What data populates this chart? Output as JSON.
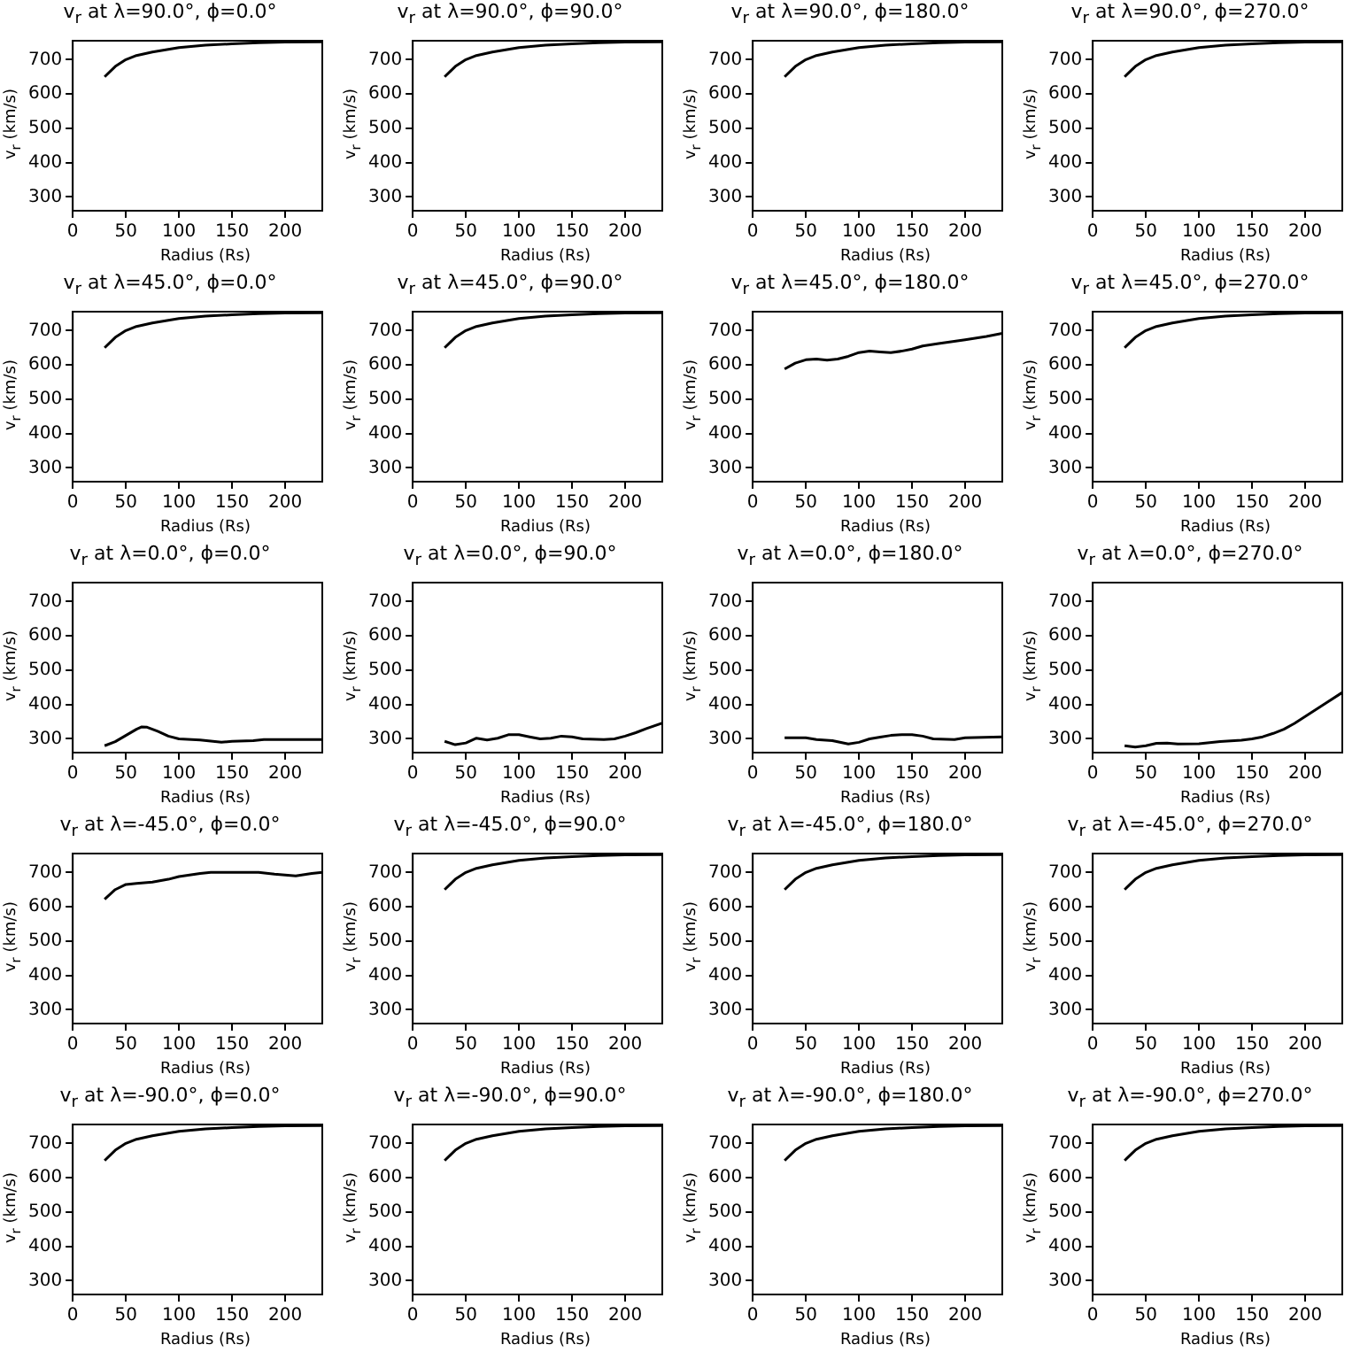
{
  "chart_data": [
    {
      "type": "line",
      "title": "v$_{r}$ at λ=90.0°, ϕ=0.0°",
      "xlabel": "Radius (Rs)",
      "ylabel": "v$_{r}$ (km/s)",
      "xlim": [
        0,
        235
      ],
      "ylim": [
        260,
        755
      ],
      "xticks": [
        0,
        50,
        100,
        150,
        200
      ],
      "yticks": [
        300,
        400,
        500,
        600,
        700
      ],
      "series": [
        {
          "color": "#000000",
          "x": [
            30,
            40,
            50,
            60,
            75,
            100,
            125,
            150,
            175,
            200,
            235
          ],
          "values": [
            650,
            680,
            700,
            712,
            722,
            735,
            742,
            746,
            749,
            751,
            752
          ]
        }
      ]
    },
    {
      "type": "line",
      "title": "v$_{r}$ at λ=90.0°, ϕ=90.0°",
      "xlabel": "Radius (Rs)",
      "ylabel": "v$_{r}$ (km/s)",
      "xlim": [
        0,
        235
      ],
      "ylim": [
        260,
        755
      ],
      "xticks": [
        0,
        50,
        100,
        150,
        200
      ],
      "yticks": [
        300,
        400,
        500,
        600,
        700
      ],
      "series": [
        {
          "color": "#000000",
          "x": [
            30,
            40,
            50,
            60,
            75,
            100,
            125,
            150,
            175,
            200,
            235
          ],
          "values": [
            650,
            680,
            700,
            712,
            722,
            735,
            742,
            746,
            749,
            751,
            752
          ]
        }
      ]
    },
    {
      "type": "line",
      "title": "v$_{r}$ at λ=90.0°, ϕ=180.0°",
      "xlabel": "Radius (Rs)",
      "ylabel": "v$_{r}$ (km/s)",
      "xlim": [
        0,
        235
      ],
      "ylim": [
        260,
        755
      ],
      "xticks": [
        0,
        50,
        100,
        150,
        200
      ],
      "yticks": [
        300,
        400,
        500,
        600,
        700
      ],
      "series": [
        {
          "color": "#000000",
          "x": [
            30,
            40,
            50,
            60,
            75,
            100,
            125,
            150,
            175,
            200,
            235
          ],
          "values": [
            650,
            680,
            700,
            712,
            722,
            735,
            742,
            746,
            749,
            751,
            752
          ]
        }
      ]
    },
    {
      "type": "line",
      "title": "v$_{r}$ at λ=90.0°, ϕ=270.0°",
      "xlabel": "Radius (Rs)",
      "ylabel": "v$_{r}$ (km/s)",
      "xlim": [
        0,
        235
      ],
      "ylim": [
        260,
        755
      ],
      "xticks": [
        0,
        50,
        100,
        150,
        200
      ],
      "yticks": [
        300,
        400,
        500,
        600,
        700
      ],
      "series": [
        {
          "color": "#000000",
          "x": [
            30,
            40,
            50,
            60,
            75,
            100,
            125,
            150,
            175,
            200,
            235
          ],
          "values": [
            650,
            680,
            700,
            712,
            722,
            735,
            742,
            746,
            749,
            751,
            752
          ]
        }
      ]
    },
    {
      "type": "line",
      "title": "v$_{r}$ at λ=45.0°, ϕ=0.0°",
      "xlabel": "Radius (Rs)",
      "ylabel": "v$_{r}$ (km/s)",
      "xlim": [
        0,
        235
      ],
      "ylim": [
        260,
        755
      ],
      "xticks": [
        0,
        50,
        100,
        150,
        200
      ],
      "yticks": [
        300,
        400,
        500,
        600,
        700
      ],
      "series": [
        {
          "color": "#000000",
          "x": [
            30,
            40,
            50,
            60,
            75,
            100,
            125,
            150,
            175,
            200,
            235
          ],
          "values": [
            650,
            680,
            700,
            712,
            722,
            735,
            742,
            746,
            749,
            751,
            752
          ]
        }
      ]
    },
    {
      "type": "line",
      "title": "v$_{r}$ at λ=45.0°, ϕ=90.0°",
      "xlabel": "Radius (Rs)",
      "ylabel": "v$_{r}$ (km/s)",
      "xlim": [
        0,
        235
      ],
      "ylim": [
        260,
        755
      ],
      "xticks": [
        0,
        50,
        100,
        150,
        200
      ],
      "yticks": [
        300,
        400,
        500,
        600,
        700
      ],
      "series": [
        {
          "color": "#000000",
          "x": [
            30,
            40,
            50,
            60,
            75,
            100,
            125,
            150,
            175,
            200,
            235
          ],
          "values": [
            650,
            680,
            700,
            712,
            722,
            735,
            742,
            746,
            749,
            751,
            752
          ]
        }
      ]
    },
    {
      "type": "line",
      "title": "v$_{r}$ at λ=45.0°, ϕ=180.0°",
      "xlabel": "Radius (Rs)",
      "ylabel": "v$_{r}$ (km/s)",
      "xlim": [
        0,
        235
      ],
      "ylim": [
        260,
        755
      ],
      "xticks": [
        0,
        50,
        100,
        150,
        200
      ],
      "yticks": [
        300,
        400,
        500,
        600,
        700
      ],
      "series": [
        {
          "color": "#000000",
          "x": [
            30,
            40,
            50,
            60,
            70,
            80,
            90,
            100,
            110,
            120,
            130,
            140,
            150,
            160,
            175,
            200,
            220,
            235
          ],
          "values": [
            588,
            605,
            615,
            617,
            614,
            617,
            625,
            636,
            640,
            638,
            636,
            640,
            646,
            655,
            662,
            673,
            683,
            692
          ]
        }
      ]
    },
    {
      "type": "line",
      "title": "v$_{r}$ at λ=45.0°, ϕ=270.0°",
      "xlabel": "Radius (Rs)",
      "ylabel": "v$_{r}$ (km/s)",
      "xlim": [
        0,
        235
      ],
      "ylim": [
        260,
        755
      ],
      "xticks": [
        0,
        50,
        100,
        150,
        200
      ],
      "yticks": [
        300,
        400,
        500,
        600,
        700
      ],
      "series": [
        {
          "color": "#000000",
          "x": [
            30,
            40,
            50,
            60,
            75,
            100,
            125,
            150,
            175,
            200,
            235
          ],
          "values": [
            650,
            680,
            700,
            712,
            722,
            735,
            742,
            746,
            749,
            751,
            752
          ]
        }
      ]
    },
    {
      "type": "line",
      "title": "v$_{r}$ at λ=0.0°, ϕ=0.0°",
      "xlabel": "Radius (Rs)",
      "ylabel": "v$_{r}$ (km/s)",
      "xlim": [
        0,
        235
      ],
      "ylim": [
        260,
        755
      ],
      "xticks": [
        0,
        50,
        100,
        150,
        200
      ],
      "yticks": [
        300,
        400,
        500,
        600,
        700
      ],
      "series": [
        {
          "color": "#000000",
          "x": [
            30,
            40,
            50,
            60,
            65,
            70,
            80,
            90,
            100,
            120,
            140,
            150,
            170,
            180,
            235
          ],
          "values": [
            280,
            292,
            310,
            328,
            335,
            334,
            322,
            308,
            300,
            297,
            290,
            293,
            295,
            298,
            298
          ]
        }
      ]
    },
    {
      "type": "line",
      "title": "v$_{r}$ at λ=0.0°, ϕ=90.0°",
      "xlabel": "Radius (Rs)",
      "ylabel": "v$_{r}$ (km/s)",
      "xlim": [
        0,
        235
      ],
      "ylim": [
        260,
        755
      ],
      "xticks": [
        0,
        50,
        100,
        150,
        200
      ],
      "yticks": [
        300,
        400,
        500,
        600,
        700
      ],
      "series": [
        {
          "color": "#000000",
          "x": [
            30,
            40,
            50,
            60,
            70,
            80,
            90,
            100,
            110,
            120,
            130,
            140,
            150,
            160,
            180,
            190,
            200,
            210,
            220,
            235
          ],
          "values": [
            293,
            283,
            288,
            302,
            297,
            302,
            312,
            312,
            306,
            300,
            302,
            308,
            306,
            300,
            298,
            300,
            308,
            318,
            330,
            346
          ]
        }
      ]
    },
    {
      "type": "line",
      "title": "v$_{r}$ at λ=0.0°, ϕ=180.0°",
      "xlabel": "Radius (Rs)",
      "ylabel": "v$_{r}$ (km/s)",
      "xlim": [
        0,
        235
      ],
      "ylim": [
        260,
        755
      ],
      "xticks": [
        0,
        50,
        100,
        150,
        200
      ],
      "yticks": [
        300,
        400,
        500,
        600,
        700
      ],
      "series": [
        {
          "color": "#000000",
          "x": [
            30,
            50,
            60,
            75,
            90,
            100,
            110,
            120,
            130,
            140,
            150,
            160,
            170,
            190,
            200,
            235
          ],
          "values": [
            303,
            303,
            298,
            295,
            285,
            290,
            300,
            305,
            310,
            312,
            312,
            308,
            300,
            298,
            303,
            306
          ]
        }
      ]
    },
    {
      "type": "line",
      "title": "v$_{r}$ at λ=0.0°, ϕ=270.0°",
      "xlabel": "Radius (Rs)",
      "ylabel": "v$_{r}$ (km/s)",
      "xlim": [
        0,
        235
      ],
      "ylim": [
        260,
        755
      ],
      "xticks": [
        0,
        50,
        100,
        150,
        200
      ],
      "yticks": [
        300,
        400,
        500,
        600,
        700
      ],
      "series": [
        {
          "color": "#000000",
          "x": [
            30,
            40,
            50,
            60,
            70,
            80,
            100,
            120,
            140,
            150,
            160,
            170,
            180,
            190,
            200,
            210,
            220,
            235
          ],
          "values": [
            280,
            276,
            280,
            287,
            288,
            285,
            286,
            292,
            296,
            300,
            306,
            316,
            328,
            345,
            365,
            385,
            405,
            435
          ]
        }
      ]
    },
    {
      "type": "line",
      "title": "v$_{r}$ at λ=-45.0°, ϕ=0.0°",
      "xlabel": "Radius (Rs)",
      "ylabel": "v$_{r}$ (km/s)",
      "xlim": [
        0,
        235
      ],
      "ylim": [
        260,
        755
      ],
      "xticks": [
        0,
        50,
        100,
        150,
        200
      ],
      "yticks": [
        300,
        400,
        500,
        600,
        700
      ],
      "series": [
        {
          "color": "#000000",
          "x": [
            30,
            40,
            50,
            60,
            75,
            90,
            100,
            120,
            130,
            175,
            190,
            210,
            225,
            235
          ],
          "values": [
            622,
            650,
            665,
            668,
            672,
            680,
            688,
            697,
            700,
            700,
            695,
            690,
            697,
            700
          ]
        }
      ]
    },
    {
      "type": "line",
      "title": "v$_{r}$ at λ=-45.0°, ϕ=90.0°",
      "xlabel": "Radius (Rs)",
      "ylabel": "v$_{r}$ (km/s)",
      "xlim": [
        0,
        235
      ],
      "ylim": [
        260,
        755
      ],
      "xticks": [
        0,
        50,
        100,
        150,
        200
      ],
      "yticks": [
        300,
        400,
        500,
        600,
        700
      ],
      "series": [
        {
          "color": "#000000",
          "x": [
            30,
            40,
            50,
            60,
            75,
            100,
            125,
            150,
            175,
            200,
            235
          ],
          "values": [
            650,
            680,
            700,
            712,
            722,
            735,
            742,
            746,
            749,
            751,
            752
          ]
        }
      ]
    },
    {
      "type": "line",
      "title": "v$_{r}$ at λ=-45.0°, ϕ=180.0°",
      "xlabel": "Radius (Rs)",
      "ylabel": "v$_{r}$ (km/s)",
      "xlim": [
        0,
        235
      ],
      "ylim": [
        260,
        755
      ],
      "xticks": [
        0,
        50,
        100,
        150,
        200
      ],
      "yticks": [
        300,
        400,
        500,
        600,
        700
      ],
      "series": [
        {
          "color": "#000000",
          "x": [
            30,
            40,
            50,
            60,
            75,
            100,
            125,
            150,
            175,
            200,
            235
          ],
          "values": [
            650,
            680,
            700,
            712,
            722,
            735,
            742,
            746,
            749,
            751,
            752
          ]
        }
      ]
    },
    {
      "type": "line",
      "title": "v$_{r}$ at λ=-45.0°, ϕ=270.0°",
      "xlabel": "Radius (Rs)",
      "ylabel": "v$_{r}$ (km/s)",
      "xlim": [
        0,
        235
      ],
      "ylim": [
        260,
        755
      ],
      "xticks": [
        0,
        50,
        100,
        150,
        200
      ],
      "yticks": [
        300,
        400,
        500,
        600,
        700
      ],
      "series": [
        {
          "color": "#000000",
          "x": [
            30,
            40,
            50,
            60,
            75,
            100,
            125,
            150,
            175,
            200,
            235
          ],
          "values": [
            650,
            680,
            700,
            712,
            722,
            735,
            742,
            746,
            749,
            751,
            752
          ]
        }
      ]
    },
    {
      "type": "line",
      "title": "v$_{r}$ at λ=-90.0°, ϕ=0.0°",
      "xlabel": "Radius (Rs)",
      "ylabel": "v$_{r}$ (km/s)",
      "xlim": [
        0,
        235
      ],
      "ylim": [
        260,
        755
      ],
      "xticks": [
        0,
        50,
        100,
        150,
        200
      ],
      "yticks": [
        300,
        400,
        500,
        600,
        700
      ],
      "series": [
        {
          "color": "#000000",
          "x": [
            30,
            40,
            50,
            60,
            75,
            100,
            125,
            150,
            175,
            200,
            235
          ],
          "values": [
            650,
            680,
            700,
            712,
            722,
            735,
            742,
            746,
            749,
            751,
            752
          ]
        }
      ]
    },
    {
      "type": "line",
      "title": "v$_{r}$ at λ=-90.0°, ϕ=90.0°",
      "xlabel": "Radius (Rs)",
      "ylabel": "v$_{r}$ (km/s)",
      "xlim": [
        0,
        235
      ],
      "ylim": [
        260,
        755
      ],
      "xticks": [
        0,
        50,
        100,
        150,
        200
      ],
      "yticks": [
        300,
        400,
        500,
        600,
        700
      ],
      "series": [
        {
          "color": "#000000",
          "x": [
            30,
            40,
            50,
            60,
            75,
            100,
            125,
            150,
            175,
            200,
            235
          ],
          "values": [
            650,
            680,
            700,
            712,
            722,
            735,
            742,
            746,
            749,
            751,
            752
          ]
        }
      ]
    },
    {
      "type": "line",
      "title": "v$_{r}$ at λ=-90.0°, ϕ=180.0°",
      "xlabel": "Radius (Rs)",
      "ylabel": "v$_{r}$ (km/s)",
      "xlim": [
        0,
        235
      ],
      "ylim": [
        260,
        755
      ],
      "xticks": [
        0,
        50,
        100,
        150,
        200
      ],
      "yticks": [
        300,
        400,
        500,
        600,
        700
      ],
      "series": [
        {
          "color": "#000000",
          "x": [
            30,
            40,
            50,
            60,
            75,
            100,
            125,
            150,
            175,
            200,
            235
          ],
          "values": [
            650,
            680,
            700,
            712,
            722,
            735,
            742,
            746,
            749,
            751,
            752
          ]
        }
      ]
    },
    {
      "type": "line",
      "title": "v$_{r}$ at λ=-90.0°, ϕ=270.0°",
      "xlabel": "Radius (Rs)",
      "ylabel": "v$_{r}$ (km/s)",
      "xlim": [
        0,
        235
      ],
      "ylim": [
        260,
        755
      ],
      "xticks": [
        0,
        50,
        100,
        150,
        200
      ],
      "yticks": [
        300,
        400,
        500,
        600,
        700
      ],
      "series": [
        {
          "color": "#000000",
          "x": [
            30,
            40,
            50,
            60,
            75,
            100,
            125,
            150,
            175,
            200,
            235
          ],
          "values": [
            650,
            680,
            700,
            712,
            722,
            735,
            742,
            746,
            749,
            751,
            752
          ]
        }
      ]
    }
  ]
}
